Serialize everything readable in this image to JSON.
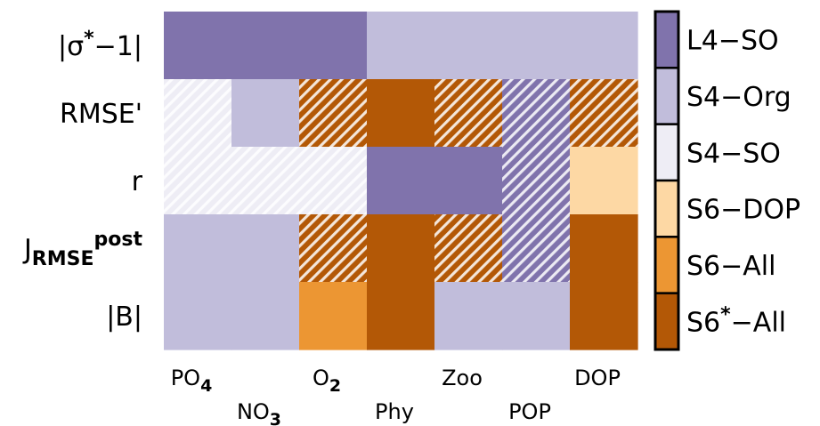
{
  "chart_data": {
    "type": "heatmap",
    "rows": [
      {
        "name": "|σ*−1|",
        "label_main": "|σ",
        "label_sup": "*",
        "label_tail": "−1|"
      },
      {
        "name": "RMSE'",
        "label_main": "RMSE'"
      },
      {
        "name": "r",
        "label_main": "r"
      },
      {
        "name": "J_RMSE^post",
        "label_main": "J",
        "label_sub": "RMSE",
        "label_sup": "post"
      },
      {
        "name": "|B|",
        "label_main": "|B|"
      }
    ],
    "columns": [
      {
        "name": "PO4",
        "base": "PO",
        "sub": "4",
        "level": "upper"
      },
      {
        "name": "NO3",
        "base": "NO",
        "sub": "3",
        "level": "lower"
      },
      {
        "name": "O2",
        "base": "O",
        "sub": "2",
        "level": "upper"
      },
      {
        "name": "Phy",
        "base": "Phy",
        "sub": "",
        "level": "lower"
      },
      {
        "name": "Zoo",
        "base": "Zoo",
        "sub": "",
        "level": "upper"
      },
      {
        "name": "POP",
        "base": "POP",
        "sub": "",
        "level": "lower"
      },
      {
        "name": "DOP",
        "base": "DOP",
        "sub": "",
        "level": "upper"
      }
    ],
    "legend": {
      "placement": "right",
      "entries": [
        {
          "label": "L4−SO",
          "base": "L4−SO",
          "color": "#8073ac"
        },
        {
          "label": "S4−Org",
          "base": "S4−Org",
          "color": "#c1bddb"
        },
        {
          "label": "S4−SO",
          "base": "S4−SO",
          "color": "#eeedf5"
        },
        {
          "label": "S6−DOP",
          "base": "S6−DOP",
          "color": "#fdd8a4"
        },
        {
          "label": "S6−All",
          "base": "S6−All",
          "color": "#ec9633"
        },
        {
          "label": "S6*−All",
          "base": "S6",
          "sup": "*",
          "tail": "−All",
          "color": "#b35806"
        }
      ]
    },
    "cells": [
      [
        {
          "c": 0,
          "h": false
        },
        {
          "c": 0,
          "h": false
        },
        {
          "c": 0,
          "h": false
        },
        {
          "c": 1,
          "h": false
        },
        {
          "c": 1,
          "h": false
        },
        {
          "c": 1,
          "h": false
        },
        {
          "c": 1,
          "h": false
        }
      ],
      [
        {
          "c": 2,
          "h": true
        },
        {
          "c": 1,
          "h": false
        },
        {
          "c": 5,
          "h": true
        },
        {
          "c": 5,
          "h": false
        },
        {
          "c": 5,
          "h": true
        },
        {
          "c": 0,
          "h": true
        },
        {
          "c": 5,
          "h": true
        }
      ],
      [
        {
          "c": 2,
          "h": true
        },
        {
          "c": 2,
          "h": true
        },
        {
          "c": 2,
          "h": true
        },
        {
          "c": 0,
          "h": false
        },
        {
          "c": 0,
          "h": false
        },
        {
          "c": 0,
          "h": true
        },
        {
          "c": 3,
          "h": false
        }
      ],
      [
        {
          "c": 1,
          "h": false
        },
        {
          "c": 1,
          "h": false
        },
        {
          "c": 5,
          "h": true
        },
        {
          "c": 5,
          "h": false
        },
        {
          "c": 5,
          "h": true
        },
        {
          "c": 0,
          "h": true
        },
        {
          "c": 5,
          "h": false
        }
      ],
      [
        {
          "c": 1,
          "h": false
        },
        {
          "c": 1,
          "h": false
        },
        {
          "c": 4,
          "h": false
        },
        {
          "c": 5,
          "h": false
        },
        {
          "c": 1,
          "h": false
        },
        {
          "c": 1,
          "h": false
        },
        {
          "c": 5,
          "h": false
        }
      ]
    ]
  }
}
